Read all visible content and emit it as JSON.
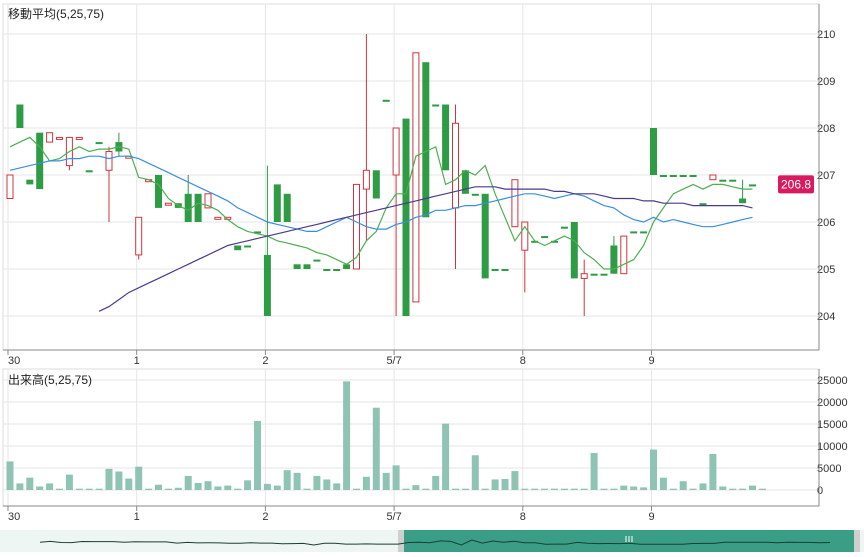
{
  "colors": {
    "up": "#2e9b45",
    "down": "#d0343f",
    "ma5": "#4caf50",
    "ma25": "#3a8fdc",
    "ma75": "#4b3a8c",
    "volume": "#8fc4b5",
    "grid": "#e6e6e6",
    "axis": "#888888",
    "price_tag": "#d81b60",
    "navigator_fill": "#3a9e86"
  },
  "chart_data": [
    {
      "type": "candlestick",
      "title": "移動平均(5,25,75)",
      "ylim": [
        203.3,
        210.6
      ],
      "yticks": [
        204,
        205,
        206,
        207,
        208,
        209,
        210
      ],
      "x_ticks": [
        {
          "index": 0,
          "label": "30"
        },
        {
          "index": 13,
          "label": "1"
        },
        {
          "index": 26,
          "label": "2"
        },
        {
          "index": 39,
          "label": "5/7"
        },
        {
          "index": 52,
          "label": "8"
        },
        {
          "index": 65,
          "label": "9"
        }
      ],
      "last_price_label": "206.8",
      "last_price": 206.8,
      "candles": [
        {
          "o": 206.5,
          "h": 207.0,
          "l": 206.5,
          "c": 207.0,
          "up": false
        },
        {
          "o": 208.5,
          "h": 208.5,
          "l": 208.0,
          "c": 208.0,
          "up": true
        },
        {
          "o": 206.9,
          "h": 206.9,
          "l": 206.8,
          "c": 206.8,
          "up": true
        },
        {
          "o": 207.9,
          "h": 207.9,
          "l": 206.7,
          "c": 206.7,
          "up": true
        },
        {
          "o": 207.7,
          "h": 207.9,
          "l": 207.7,
          "c": 207.9,
          "up": false
        },
        {
          "o": 207.8,
          "h": 207.8,
          "l": 207.8,
          "c": 207.8,
          "up": false
        },
        {
          "o": 207.2,
          "h": 207.8,
          "l": 207.1,
          "c": 207.8,
          "up": false
        },
        {
          "o": 207.8,
          "h": 207.8,
          "l": 207.8,
          "c": 207.8,
          "up": false
        },
        {
          "o": 207.1,
          "h": 207.1,
          "l": 207.1,
          "c": 207.1,
          "up": true
        },
        {
          "o": 207.7,
          "h": 207.7,
          "l": 207.7,
          "c": 207.7,
          "up": true
        },
        {
          "o": 207.1,
          "h": 207.6,
          "l": 206.0,
          "c": 207.5,
          "up": false
        },
        {
          "o": 207.7,
          "h": 207.9,
          "l": 207.4,
          "c": 207.5,
          "up": true
        },
        {
          "o": 207.4,
          "h": 207.4,
          "l": 207.4,
          "c": 207.4,
          "up": false
        },
        {
          "o": 205.3,
          "h": 206.1,
          "l": 205.2,
          "c": 206.1,
          "up": false
        },
        {
          "o": 206.9,
          "h": 206.9,
          "l": 206.9,
          "c": 206.9,
          "up": false
        },
        {
          "o": 207.0,
          "h": 207.0,
          "l": 206.3,
          "c": 206.3,
          "up": true
        },
        {
          "o": 206.4,
          "h": 206.4,
          "l": 206.4,
          "c": 206.4,
          "up": false
        },
        {
          "o": 206.4,
          "h": 206.4,
          "l": 206.3,
          "c": 206.3,
          "up": true
        },
        {
          "o": 206.6,
          "h": 207.0,
          "l": 206.0,
          "c": 206.0,
          "up": true
        },
        {
          "o": 206.6,
          "h": 206.6,
          "l": 206.0,
          "c": 206.0,
          "up": true
        },
        {
          "o": 206.3,
          "h": 206.6,
          "l": 206.3,
          "c": 206.6,
          "up": false
        },
        {
          "o": 206.1,
          "h": 206.1,
          "l": 206.1,
          "c": 206.1,
          "up": false
        },
        {
          "o": 206.1,
          "h": 206.1,
          "l": 206.1,
          "c": 206.1,
          "up": false
        },
        {
          "o": 205.5,
          "h": 205.5,
          "l": 205.4,
          "c": 205.4,
          "up": true
        },
        {
          "o": 205.5,
          "h": 205.5,
          "l": 205.5,
          "c": 205.5,
          "up": true
        },
        {
          "o": 205.8,
          "h": 205.8,
          "l": 205.8,
          "c": 205.8,
          "up": true
        },
        {
          "o": 205.3,
          "h": 207.2,
          "l": 204.0,
          "c": 204.0,
          "up": true
        },
        {
          "o": 206.8,
          "h": 206.8,
          "l": 206.0,
          "c": 206.0,
          "up": true
        },
        {
          "o": 206.6,
          "h": 206.6,
          "l": 206.0,
          "c": 206.0,
          "up": true
        },
        {
          "o": 205.1,
          "h": 205.1,
          "l": 205.0,
          "c": 205.0,
          "up": true
        },
        {
          "o": 205.1,
          "h": 205.1,
          "l": 205.0,
          "c": 205.0,
          "up": true
        },
        {
          "o": 205.2,
          "h": 205.2,
          "l": 205.2,
          "c": 205.2,
          "up": true
        },
        {
          "o": 205.0,
          "h": 205.0,
          "l": 205.0,
          "c": 205.0,
          "up": true
        },
        {
          "o": 205.0,
          "h": 205.0,
          "l": 205.0,
          "c": 205.0,
          "up": true
        },
        {
          "o": 205.1,
          "h": 205.1,
          "l": 205.0,
          "c": 205.0,
          "up": true
        },
        {
          "o": 205.0,
          "h": 206.8,
          "l": 205.0,
          "c": 206.8,
          "up": false
        },
        {
          "o": 206.7,
          "h": 210.0,
          "l": 205.6,
          "c": 207.1,
          "up": false
        },
        {
          "o": 207.1,
          "h": 207.1,
          "l": 206.5,
          "c": 206.5,
          "up": true
        },
        {
          "o": 208.6,
          "h": 208.6,
          "l": 208.6,
          "c": 208.6,
          "up": true
        },
        {
          "o": 207.0,
          "h": 208.0,
          "l": 204.0,
          "c": 208.0,
          "up": false
        },
        {
          "o": 208.2,
          "h": 208.2,
          "l": 204.0,
          "c": 204.0,
          "up": true
        },
        {
          "o": 204.3,
          "h": 209.6,
          "l": 204.3,
          "c": 209.6,
          "up": false
        },
        {
          "o": 209.4,
          "h": 209.4,
          "l": 206.1,
          "c": 206.1,
          "up": true
        },
        {
          "o": 208.5,
          "h": 208.5,
          "l": 208.5,
          "c": 208.5,
          "up": true
        },
        {
          "o": 208.5,
          "h": 208.5,
          "l": 207.1,
          "c": 207.1,
          "up": true
        },
        {
          "o": 206.3,
          "h": 208.5,
          "l": 205.0,
          "c": 208.1,
          "up": false
        },
        {
          "o": 207.1,
          "h": 207.1,
          "l": 206.6,
          "c": 206.6,
          "up": true
        },
        {
          "o": 206.6,
          "h": 206.6,
          "l": 206.6,
          "c": 206.6,
          "up": true
        },
        {
          "o": 206.6,
          "h": 206.6,
          "l": 204.8,
          "c": 204.8,
          "up": true
        },
        {
          "o": 205.0,
          "h": 205.0,
          "l": 205.0,
          "c": 205.0,
          "up": true
        },
        {
          "o": 205.0,
          "h": 205.0,
          "l": 205.0,
          "c": 205.0,
          "up": true
        },
        {
          "o": 205.9,
          "h": 206.9,
          "l": 205.9,
          "c": 206.9,
          "up": false
        },
        {
          "o": 205.4,
          "h": 206.0,
          "l": 204.5,
          "c": 206.0,
          "up": false
        },
        {
          "o": 205.6,
          "h": 205.6,
          "l": 205.6,
          "c": 205.6,
          "up": true
        },
        {
          "o": 205.7,
          "h": 205.7,
          "l": 205.7,
          "c": 205.7,
          "up": true
        },
        {
          "o": 205.6,
          "h": 205.6,
          "l": 205.6,
          "c": 205.6,
          "up": true
        },
        {
          "o": 205.9,
          "h": 205.9,
          "l": 205.9,
          "c": 205.9,
          "up": true
        },
        {
          "o": 206.0,
          "h": 206.0,
          "l": 204.8,
          "c": 204.8,
          "up": true
        },
        {
          "o": 204.8,
          "h": 205.2,
          "l": 204.0,
          "c": 204.9,
          "up": false
        },
        {
          "o": 204.9,
          "h": 204.9,
          "l": 204.9,
          "c": 204.9,
          "up": true
        },
        {
          "o": 204.9,
          "h": 204.9,
          "l": 204.9,
          "c": 204.9,
          "up": true
        },
        {
          "o": 205.5,
          "h": 205.7,
          "l": 204.9,
          "c": 204.9,
          "up": true
        },
        {
          "o": 204.9,
          "h": 205.7,
          "l": 204.9,
          "c": 205.7,
          "up": false
        },
        {
          "o": 205.8,
          "h": 205.8,
          "l": 205.8,
          "c": 205.8,
          "up": true
        },
        {
          "o": 205.8,
          "h": 205.8,
          "l": 205.8,
          "c": 205.8,
          "up": true
        },
        {
          "o": 208.0,
          "h": 208.0,
          "l": 207.0,
          "c": 207.0,
          "up": true
        },
        {
          "o": 207.0,
          "h": 207.0,
          "l": 207.0,
          "c": 207.0,
          "up": true
        },
        {
          "o": 207.0,
          "h": 207.0,
          "l": 207.0,
          "c": 207.0,
          "up": true
        },
        {
          "o": 207.0,
          "h": 207.0,
          "l": 207.0,
          "c": 207.0,
          "up": true
        },
        {
          "o": 207.0,
          "h": 207.0,
          "l": 207.0,
          "c": 207.0,
          "up": true
        },
        {
          "o": 206.4,
          "h": 206.4,
          "l": 206.4,
          "c": 206.4,
          "up": true
        },
        {
          "o": 206.9,
          "h": 207.0,
          "l": 206.9,
          "c": 207.0,
          "up": false
        },
        {
          "o": 206.9,
          "h": 206.9,
          "l": 206.9,
          "c": 206.9,
          "up": true
        },
        {
          "o": 206.9,
          "h": 206.9,
          "l": 206.9,
          "c": 206.9,
          "up": true
        },
        {
          "o": 206.5,
          "h": 206.9,
          "l": 206.4,
          "c": 206.4,
          "up": true
        },
        {
          "o": 206.8,
          "h": 206.8,
          "l": 206.8,
          "c": 206.8,
          "up": true
        }
      ],
      "ma_series": [
        {
          "name": "5",
          "color_key": "ma5",
          "start": 0,
          "values": [
            207.6,
            207.7,
            207.8,
            207.6,
            207.3,
            207.35,
            207.5,
            207.6,
            207.5,
            207.55,
            207.55,
            207.6,
            207.55,
            206.95,
            206.9,
            206.8,
            206.5,
            206.35,
            206.25,
            206.4,
            206.35,
            206.25,
            206.05,
            205.9,
            205.8,
            205.75,
            205.7,
            205.6,
            205.55,
            205.5,
            205.45,
            205.35,
            205.3,
            205.2,
            205.1,
            205.25,
            205.6,
            205.8,
            206.3,
            206.6,
            206.6,
            207.4,
            207.5,
            207.6,
            206.8,
            206.9,
            207.1,
            207.0,
            207.2,
            206.6,
            206.1,
            205.6,
            205.9,
            205.6,
            205.5,
            205.6,
            205.7,
            205.6,
            205.35,
            205.2,
            205.0,
            205.0,
            205.1,
            205.2,
            205.5,
            206.0,
            206.3,
            206.6,
            206.7,
            206.8,
            206.7,
            206.8,
            206.8,
            206.75,
            206.7,
            206.7
          ]
        },
        {
          "name": "25",
          "color_key": "ma25",
          "start": 0,
          "values": [
            207.1,
            207.15,
            207.2,
            207.25,
            207.3,
            207.3,
            207.35,
            207.35,
            207.4,
            207.4,
            207.35,
            207.4,
            207.4,
            207.35,
            207.25,
            207.15,
            207.05,
            206.95,
            206.85,
            206.75,
            206.65,
            206.55,
            206.45,
            206.3,
            206.2,
            206.1,
            206.0,
            205.95,
            205.9,
            205.85,
            205.8,
            205.8,
            205.9,
            206.0,
            206.1,
            206.0,
            205.9,
            205.85,
            205.85,
            205.95,
            206.0,
            206.1,
            206.15,
            206.25,
            206.25,
            206.3,
            206.35,
            206.35,
            206.4,
            206.45,
            206.5,
            206.55,
            206.6,
            206.6,
            206.55,
            206.5,
            206.55,
            206.6,
            206.55,
            206.45,
            206.35,
            206.3,
            206.15,
            206.05,
            206.0,
            206.1,
            206.0,
            206.05,
            206.0,
            205.95,
            205.9,
            205.9,
            205.95,
            206.0,
            206.05,
            206.1
          ]
        },
        {
          "name": "75",
          "color_key": "ma75",
          "start": 9,
          "values": [
            204.1,
            204.2,
            204.35,
            204.5,
            204.6,
            204.7,
            204.8,
            204.9,
            205.0,
            205.1,
            205.2,
            205.3,
            205.4,
            205.5,
            205.55,
            205.6,
            205.65,
            205.7,
            205.75,
            205.8,
            205.85,
            205.9,
            205.95,
            206.0,
            206.05,
            206.1,
            206.15,
            206.2,
            206.25,
            206.3,
            206.35,
            206.4,
            206.45,
            206.5,
            206.55,
            206.6,
            206.65,
            206.7,
            206.75,
            206.75,
            206.75,
            206.7,
            206.7,
            206.7,
            206.7,
            206.7,
            206.65,
            206.65,
            206.6,
            206.6,
            206.6,
            206.55,
            206.5,
            206.5,
            206.5,
            206.45,
            206.45,
            206.4,
            206.4,
            206.4,
            206.35,
            206.35,
            206.35,
            206.35,
            206.35,
            206.35,
            206.3
          ]
        }
      ]
    },
    {
      "type": "bar",
      "title": "出来高(5,25,75)",
      "ylim": [
        -3500,
        27000
      ],
      "yticks": [
        0,
        5000,
        10000,
        15000,
        20000,
        25000
      ],
      "ytick_labels": [
        "0",
        "5000",
        "10000",
        "15000",
        "20000",
        "25000"
      ],
      "x_ticks": [
        {
          "index": 0,
          "label": "30"
        },
        {
          "index": 13,
          "label": "1"
        },
        {
          "index": 26,
          "label": "2"
        },
        {
          "index": 39,
          "label": "5/7"
        },
        {
          "index": 52,
          "label": "8"
        },
        {
          "index": 65,
          "label": "9"
        }
      ],
      "values": [
        6500,
        1500,
        2800,
        800,
        1500,
        300,
        3500,
        300,
        300,
        300,
        4800,
        4200,
        2600,
        5300,
        300,
        1200,
        300,
        500,
        3200,
        1600,
        2000,
        800,
        1000,
        300,
        2200,
        15700,
        1400,
        1000,
        4500,
        3900,
        300,
        3200,
        2400,
        1500,
        24700,
        300,
        3000,
        18700,
        3900,
        5600,
        300,
        1100,
        300,
        3200,
        15100,
        300,
        300,
        7900,
        300,
        2400,
        2500,
        4300,
        300,
        300,
        300,
        300,
        300,
        300,
        300,
        8400,
        300,
        300,
        1000,
        800,
        600,
        9200,
        2800,
        300,
        2000,
        300,
        1500,
        8200,
        800,
        300,
        300,
        1000,
        300
      ]
    }
  ]
}
